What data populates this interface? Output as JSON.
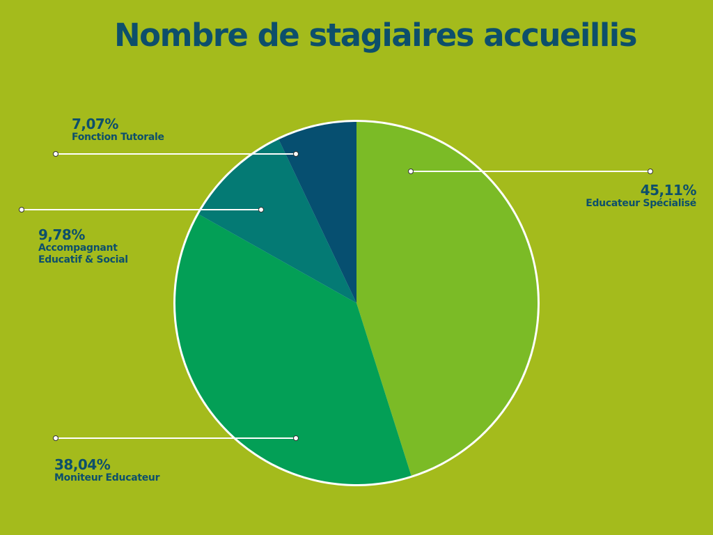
{
  "chart_data": {
    "type": "pie",
    "title": "Nombre de stagiaires accueillis",
    "colors": {
      "background": "#a4bb1c",
      "text": "#0d4f6b",
      "border": "#ffffff"
    },
    "slices": [
      {
        "name": "Educateur Spécialisé",
        "value": 45.11,
        "label": "45,11%",
        "color": "#7bbb26"
      },
      {
        "name": "Moniteur Educateur",
        "value": 38.04,
        "label": "38,04%",
        "color": "#039f56"
      },
      {
        "name": "Accompagnant Educatif & Social",
        "value": 9.78,
        "label": "9,78%",
        "color": "#047a74"
      },
      {
        "name": "Fonction Tutorale",
        "value": 7.07,
        "label": "7,07%",
        "color": "#064f70"
      }
    ]
  }
}
